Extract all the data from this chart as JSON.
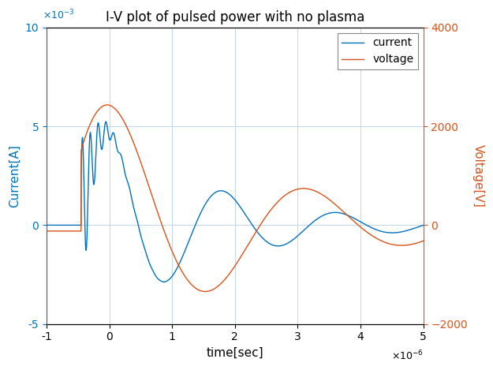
{
  "title": "I-V plot of pulsed power with no plasma",
  "xlabel": "time[sec]",
  "ylabel_left": "Current[A]",
  "ylabel_right": "Voltage[V]",
  "current_color": "#0072BD",
  "voltage_color": "#D95319",
  "xlim": [
    -1e-06,
    5e-06
  ],
  "ylim_current": [
    -0.005,
    0.01
  ],
  "ylim_voltage": [
    -2000,
    4000
  ],
  "xticks": [
    -1e-06,
    0,
    1e-06,
    2e-06,
    3e-06,
    4e-06,
    5e-06
  ],
  "yticks_current": [
    -0.005,
    0,
    0.005,
    0.01
  ],
  "yticks_voltage": [
    -2000,
    0,
    2000,
    4000
  ],
  "legend_labels": [
    "current",
    "voltage"
  ],
  "background_color": "#ffffff",
  "grid_color": "#b8cfe8",
  "linewidth": 1.0
}
